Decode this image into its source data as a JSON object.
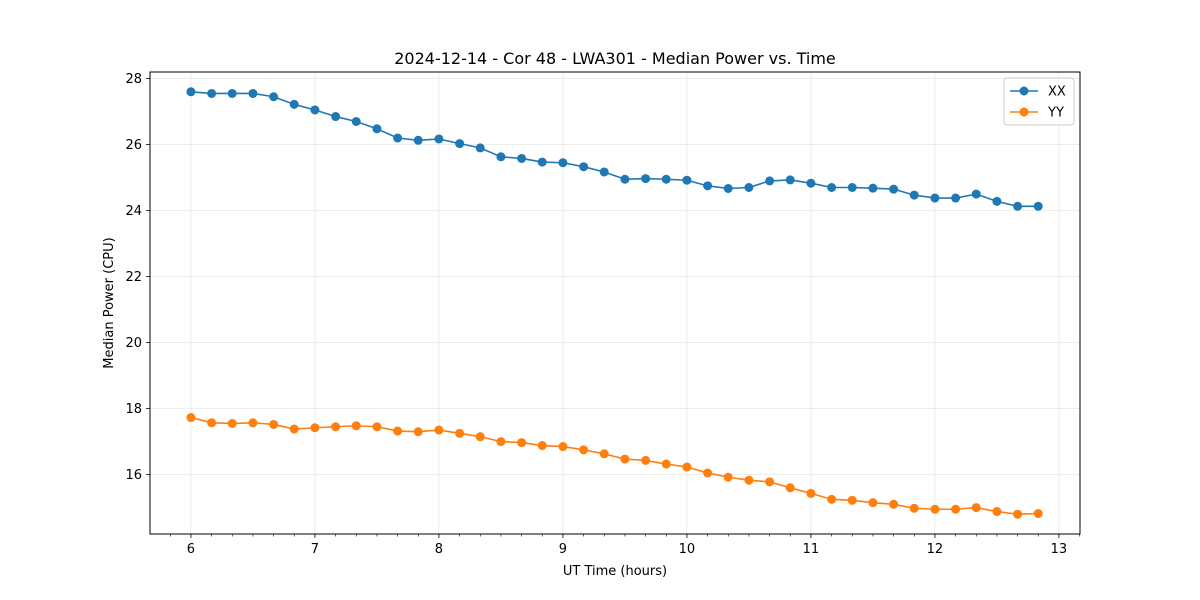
{
  "chart_data": {
    "type": "line",
    "title": "2024-12-14 - Cor 48 - LWA301 - Median Power vs. Time",
    "xlabel": "UT Time (hours)",
    "ylabel": "Median Power (CPU)",
    "xlim": [
      5.67,
      13.17
    ],
    "ylim": [
      14.2,
      28.2
    ],
    "xticks": [
      6,
      7,
      8,
      9,
      10,
      11,
      12,
      13
    ],
    "yticks": [
      16,
      18,
      20,
      22,
      24,
      26,
      28
    ],
    "grid": true,
    "legend_position": "top-right",
    "x": [
      6.0,
      6.167,
      6.333,
      6.5,
      6.667,
      6.833,
      7.0,
      7.167,
      7.333,
      7.5,
      7.667,
      7.833,
      8.0,
      8.167,
      8.333,
      8.5,
      8.667,
      8.833,
      9.0,
      9.167,
      9.333,
      9.5,
      9.667,
      9.833,
      10.0,
      10.167,
      10.333,
      10.5,
      10.667,
      10.833,
      11.0,
      11.167,
      11.333,
      11.5,
      11.667,
      11.833,
      12.0,
      12.167,
      12.333,
      12.5,
      12.667,
      12.833
    ],
    "series": [
      {
        "name": "XX",
        "color": "#1f77b4",
        "values": [
          27.6,
          27.55,
          27.55,
          27.55,
          27.45,
          27.22,
          27.05,
          26.85,
          26.7,
          26.48,
          26.2,
          26.13,
          26.17,
          26.03,
          25.9,
          25.63,
          25.58,
          25.47,
          25.45,
          25.33,
          25.17,
          24.95,
          24.97,
          24.95,
          24.92,
          24.75,
          24.67,
          24.7,
          24.9,
          24.93,
          24.83,
          24.7,
          24.7,
          24.68,
          24.65,
          24.47,
          24.38,
          24.38,
          24.5,
          24.28,
          24.13,
          24.13
        ]
      },
      {
        "name": "YY",
        "color": "#ff7f0e",
        "values": [
          17.73,
          17.57,
          17.55,
          17.57,
          17.52,
          17.38,
          17.42,
          17.45,
          17.48,
          17.45,
          17.32,
          17.3,
          17.35,
          17.25,
          17.15,
          17.0,
          16.97,
          16.88,
          16.85,
          16.75,
          16.63,
          16.47,
          16.43,
          16.32,
          16.23,
          16.05,
          15.92,
          15.83,
          15.78,
          15.6,
          15.43,
          15.25,
          15.22,
          15.15,
          15.1,
          14.98,
          14.95,
          14.95,
          15.0,
          14.88,
          14.8,
          14.82
        ]
      }
    ]
  }
}
